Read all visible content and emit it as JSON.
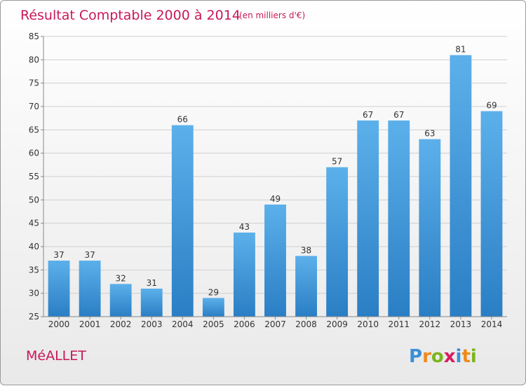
{
  "chart_data": {
    "type": "bar",
    "title": "Résultat Comptable 2000 à 2014",
    "subtitle": "(en milliers d'€)",
    "categories": [
      "2000",
      "2001",
      "2002",
      "2003",
      "2004",
      "2005",
      "2006",
      "2007",
      "2008",
      "2009",
      "2010",
      "2011",
      "2012",
      "2013",
      "2014"
    ],
    "values": [
      37,
      37,
      32,
      31,
      66,
      29,
      43,
      49,
      38,
      57,
      67,
      67,
      63,
      81,
      69
    ],
    "ylim": [
      25,
      85
    ],
    "yticks": [
      25,
      30,
      35,
      40,
      45,
      50,
      55,
      60,
      65,
      70,
      75,
      80,
      85
    ],
    "grid": true,
    "bar_color": "#3a8fd8"
  },
  "commune": "MéALLET",
  "logo": {
    "letters": [
      "P",
      "r",
      "o",
      "x",
      "i",
      "t",
      "i"
    ],
    "colors": [
      "#3a8fd8",
      "#f08a1c",
      "#7ab51d",
      "#d81b60",
      "#3a8fd8",
      "#f08a1c",
      "#7ab51d"
    ]
  }
}
